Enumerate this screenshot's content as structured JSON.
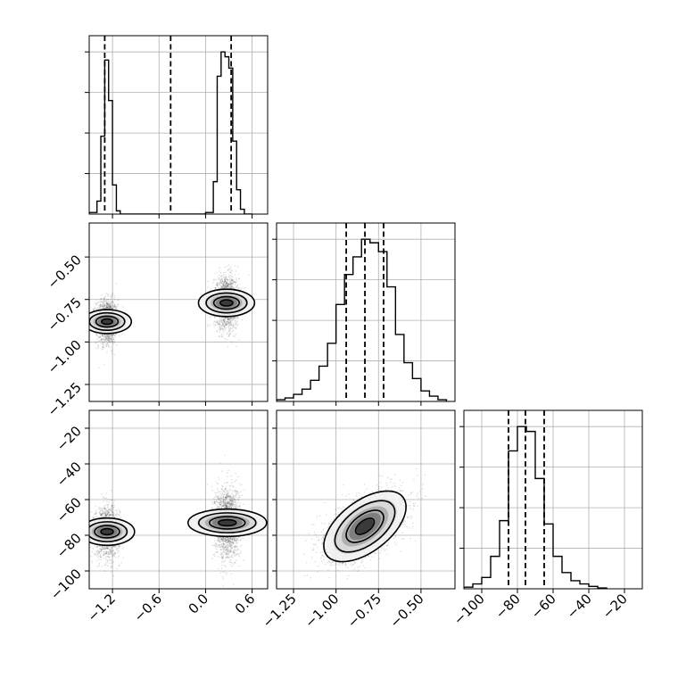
{
  "chart_data": {
    "type": "corner",
    "grid": true,
    "parameters": [
      {
        "index": 0,
        "range": [
          -1.5,
          0.8
        ],
        "ticks": [
          -1.2,
          -0.6,
          0.0,
          0.6
        ],
        "tick_labels": [
          "−1.2",
          "−0.6",
          "0.0",
          "0.6"
        ],
        "quantiles": [
          -1.3,
          -0.45,
          0.33
        ]
      },
      {
        "index": 1,
        "range": [
          -1.35,
          -0.3
        ],
        "ticks": [
          -1.25,
          -1.0,
          -0.75,
          -0.5
        ],
        "tick_labels": [
          "−1.25",
          "−1.00",
          "−0.75",
          "−0.50"
        ],
        "quantiles": [
          -0.94,
          -0.83,
          -0.72
        ]
      },
      {
        "index": 2,
        "range": [
          -110,
          -10
        ],
        "ticks": [
          -100,
          -80,
          -60,
          -40,
          -20
        ],
        "tick_labels": [
          "−100",
          "−80",
          "−60",
          "−40",
          "−20"
        ],
        "quantiles": [
          -85,
          -75.5,
          -65
        ]
      }
    ],
    "histograms": [
      {
        "param": 0,
        "bin_edges": [
          -1.5,
          -1.4,
          -1.35,
          -1.3,
          -1.25,
          -1.2,
          -1.15,
          -1.1,
          0.0,
          0.1,
          0.15,
          0.2,
          0.25,
          0.3,
          0.35,
          0.4,
          0.45,
          0.5,
          0.6
        ],
        "counts": [
          0.01,
          0.08,
          0.48,
          0.95,
          0.7,
          0.18,
          0.02,
          0.0,
          0.01,
          0.2,
          0.85,
          1.0,
          0.97,
          0.9,
          0.45,
          0.15,
          0.03,
          0.0
        ]
      },
      {
        "param": 1,
        "bin_edges": [
          -1.35,
          -1.3,
          -1.25,
          -1.2,
          -1.15,
          -1.1,
          -1.05,
          -1.0,
          -0.95,
          -0.9,
          -0.85,
          -0.8,
          -0.75,
          -0.7,
          -0.65,
          -0.6,
          -0.55,
          -0.5,
          -0.45,
          -0.4,
          -0.35
        ],
        "counts": [
          0.01,
          0.02,
          0.04,
          0.07,
          0.12,
          0.2,
          0.33,
          0.55,
          0.72,
          0.82,
          0.92,
          0.9,
          0.85,
          0.65,
          0.38,
          0.22,
          0.13,
          0.06,
          0.03,
          0.01
        ]
      },
      {
        "param": 2,
        "bin_edges": [
          -110,
          -105,
          -100,
          -95,
          -90,
          -85,
          -80,
          -75,
          -70,
          -65,
          -60,
          -55,
          -50,
          -45,
          -40,
          -35,
          -30
        ],
        "counts": [
          0.01,
          0.03,
          0.07,
          0.2,
          0.42,
          0.85,
          1.0,
          0.97,
          0.68,
          0.4,
          0.2,
          0.1,
          0.05,
          0.03,
          0.015,
          0.005
        ]
      }
    ],
    "joint": [
      {
        "x_param": 0,
        "y_param": 1,
        "modes": [
          {
            "x_mean": -1.27,
            "x_std": 0.07,
            "y_mean": -0.88,
            "y_std": 0.065,
            "rho": 0.0,
            "weight": 0.45
          },
          {
            "x_mean": 0.27,
            "x_std": 0.08,
            "y_mean": -0.77,
            "y_std": 0.075,
            "rho": 0.0,
            "weight": 0.55
          }
        ]
      },
      {
        "x_param": 0,
        "y_param": 2,
        "modes": [
          {
            "x_mean": -1.27,
            "x_std": 0.08,
            "y_mean": -78,
            "y_std": 7,
            "rho": 0.0,
            "weight": 0.45
          },
          {
            "x_mean": 0.28,
            "x_std": 0.08,
            "y_mean": -73,
            "y_std": 10,
            "rho": 0.0,
            "weight": 0.55
          }
        ]
      },
      {
        "x_param": 1,
        "y_param": 2,
        "modes": [
          {
            "x_mean": -0.83,
            "x_std": 0.11,
            "y_mean": -75,
            "y_std": 9,
            "rho": 0.55,
            "weight": 1.0
          }
        ]
      }
    ]
  }
}
